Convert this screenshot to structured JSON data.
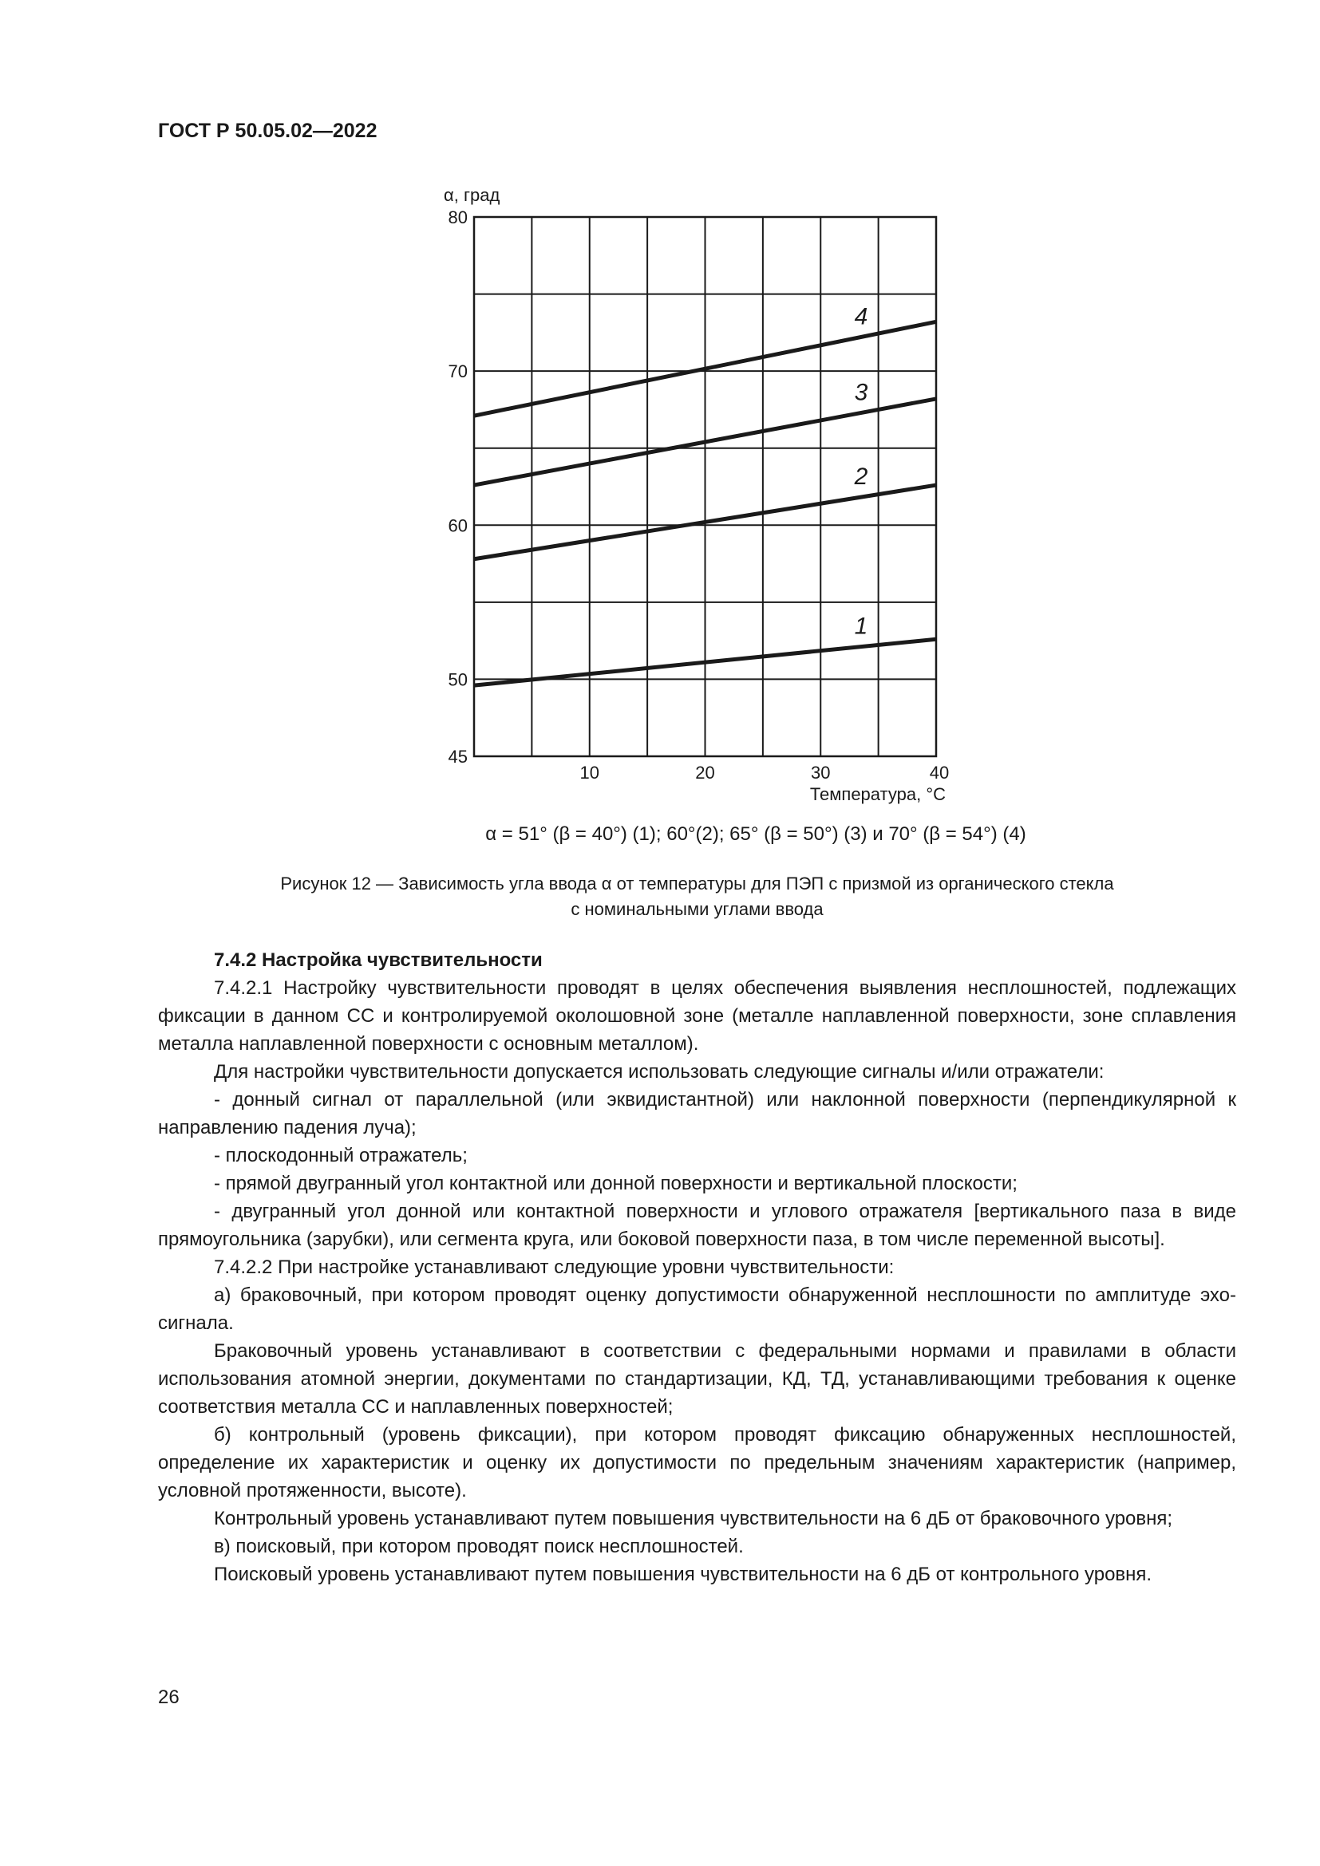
{
  "header": {
    "doc_id": "ГОСТ Р 50.05.02—2022"
  },
  "chart_data": {
    "type": "line",
    "xlabel": "Температура, °С",
    "ylabel": "α, град",
    "xlim": [
      0,
      40
    ],
    "ylim": [
      45,
      80
    ],
    "x_ticks": [
      10,
      20,
      30,
      40
    ],
    "y_ticks": [
      45,
      50,
      60,
      70,
      80
    ],
    "grid": true,
    "grid_step_x": 5,
    "grid_step_y": 5,
    "series": [
      {
        "name": "1",
        "x": [
          0,
          40
        ],
        "y": [
          49.6,
          52.6
        ]
      },
      {
        "name": "2",
        "x": [
          0,
          40
        ],
        "y": [
          57.8,
          62.6
        ]
      },
      {
        "name": "3",
        "x": [
          0,
          40
        ],
        "y": [
          62.6,
          68.2
        ]
      },
      {
        "name": "4",
        "x": [
          0,
          40
        ],
        "y": [
          67.1,
          73.2
        ]
      }
    ]
  },
  "figure": {
    "legend": "α = 51° (β = 40°) (1); 60°(2); 65° (β = 50°) (3) и 70° (β = 54°) (4)",
    "caption_line1": "Рисунок 12 — Зависимость угла ввода α от температуры для ПЭП с призмой из органического стекла",
    "caption_line2": "с  номинальными углами ввода"
  },
  "section": {
    "heading": "7.4.2  Настройка чувствительности",
    "paragraphs": [
      "7.4.2.1 Настройку чувствительности проводят в целях обеспечения выявления несплошностей, подлежащих фиксации в данном СС и контролируемой околошовной зоне (металле наплавленной поверхности, зоне сплавления металла наплавленной поверхности с основным металлом).",
      "Для настройки чувствительности допускается использовать следующие сигналы и/или отражатели:",
      "-  донный сигнал от параллельной (или эквидистантной) или наклонной поверхности (перпендикулярной к направлению падения луча);",
      "-  плоскодонный отражатель;",
      "-  прямой двугранный угол контактной или донной поверхности и вертикальной плоскости;",
      "-  двугранный угол донной или контактной поверхности и углового отражателя [вертикального паза в виде прямоугольника (зарубки), или сегмента круга, или боковой поверхности паза, в том числе переменной высоты].",
      "7.4.2.2  При настройке устанавливают следующие уровни чувствительности:",
      "а)  браковочный, при котором проводят оценку допустимости обнаруженной несплошности по амплитуде эхо-сигнала.",
      "Браковочный уровень устанавливают в соответствии с федеральными нормами и правилами в области использования атомной энергии, документами по стандартизации, КД, ТД, устанавливающими требования к оценке соответствия металла СС и наплавленных поверхностей;",
      "б)  контрольный (уровень фиксации), при котором проводят фиксацию обнаруженных несплошностей, определение их характеристик и оценку их допустимости по предельным значениям характеристик (например, условной протяженности, высоте).",
      "Контрольный уровень устанавливают путем повышения чувствительности на 6 дБ от браковочного уровня;",
      "в)  поисковый, при котором проводят поиск несплошностей.",
      "Поисковый уровень устанавливают путем повышения чувствительности на 6 дБ от контрольного уровня."
    ]
  },
  "page_number": "26"
}
